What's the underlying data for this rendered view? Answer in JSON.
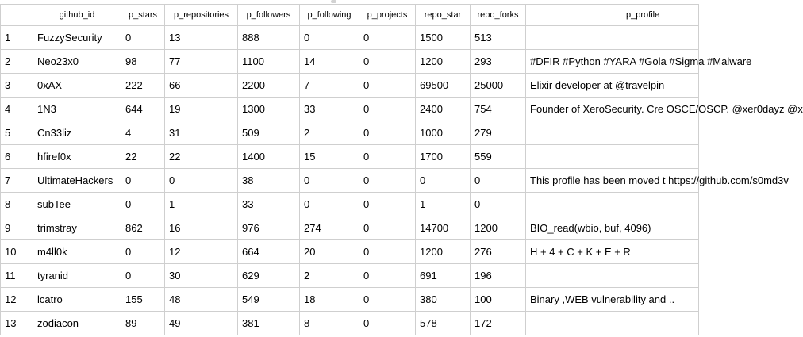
{
  "columns": [
    "",
    "github_id",
    "p_stars",
    "p_repositories",
    "p_followers",
    "p_following",
    "p_projects",
    "repo_star",
    "repo_forks",
    "p_profile"
  ],
  "rows": [
    {
      "n": "1",
      "id": "FuzzySecurity",
      "stars": "0",
      "repos": "13",
      "followers": "888",
      "following": "0",
      "projects": "0",
      "repo_star": "1500",
      "repo_forks": "513",
      "profile": ""
    },
    {
      "n": "2",
      "id": "Neo23x0",
      "stars": "98",
      "repos": "77",
      "followers": "1100",
      "following": "14",
      "projects": "0",
      "repo_star": "1200",
      "repo_forks": "293",
      "profile": "#DFIR #Python #YARA #Gola #Sigma #Malware"
    },
    {
      "n": "3",
      "id": "0xAX",
      "stars": "222",
      "repos": "66",
      "followers": "2200",
      "following": "7",
      "projects": "0",
      "repo_star": "69500",
      "repo_forks": "25000",
      "profile": "Elixir developer at @travelpin"
    },
    {
      "n": "4",
      "id": "1N3",
      "stars": "644",
      "repos": "19",
      "followers": "1300",
      "following": "33",
      "projects": "0",
      "repo_star": "2400",
      "repo_forks": "754",
      "profile": "Founder of XeroSecurity. Cre OSCE/OSCP. @xer0dayz @x"
    },
    {
      "n": "5",
      "id": "Cn33liz",
      "stars": "4",
      "repos": "31",
      "followers": "509",
      "following": "2",
      "projects": "0",
      "repo_star": "1000",
      "repo_forks": "279",
      "profile": ""
    },
    {
      "n": "6",
      "id": "hfiref0x",
      "stars": "22",
      "repos": "22",
      "followers": "1400",
      "following": "15",
      "projects": "0",
      "repo_star": "1700",
      "repo_forks": "559",
      "profile": ""
    },
    {
      "n": "7",
      "id": "UltimateHackers",
      "stars": "0",
      "repos": "0",
      "followers": "38",
      "following": "0",
      "projects": "0",
      "repo_star": "0",
      "repo_forks": "0",
      "profile": "This profile has been moved t https://github.com/s0md3v"
    },
    {
      "n": "8",
      "id": "subTee",
      "stars": "0",
      "repos": "1",
      "followers": "33",
      "following": "0",
      "projects": "0",
      "repo_star": "1",
      "repo_forks": "0",
      "profile": ""
    },
    {
      "n": "9",
      "id": "trimstray",
      "stars": "862",
      "repos": "16",
      "followers": "976",
      "following": "274",
      "projects": "0",
      "repo_star": "14700",
      "repo_forks": "1200",
      "profile": "BIO_read(wbio, buf, 4096)"
    },
    {
      "n": "10",
      "id": "m4ll0k",
      "stars": "0",
      "repos": "12",
      "followers": "664",
      "following": "20",
      "projects": "0",
      "repo_star": "1200",
      "repo_forks": "276",
      "profile": "H + 4 + C + K + E + R"
    },
    {
      "n": "11",
      "id": "tyranid",
      "stars": "0",
      "repos": "30",
      "followers": "629",
      "following": "2",
      "projects": "0",
      "repo_star": "691",
      "repo_forks": "196",
      "profile": ""
    },
    {
      "n": "12",
      "id": "lcatro",
      "stars": "155",
      "repos": "48",
      "followers": "549",
      "following": "18",
      "projects": "0",
      "repo_star": "380",
      "repo_forks": "100",
      "profile": "Binary ,WEB vulnerability and .."
    },
    {
      "n": "13",
      "id": "zodiacon",
      "stars": "89",
      "repos": "49",
      "followers": "381",
      "following": "8",
      "projects": "0",
      "repo_star": "578",
      "repo_forks": "172",
      "profile": ""
    }
  ]
}
